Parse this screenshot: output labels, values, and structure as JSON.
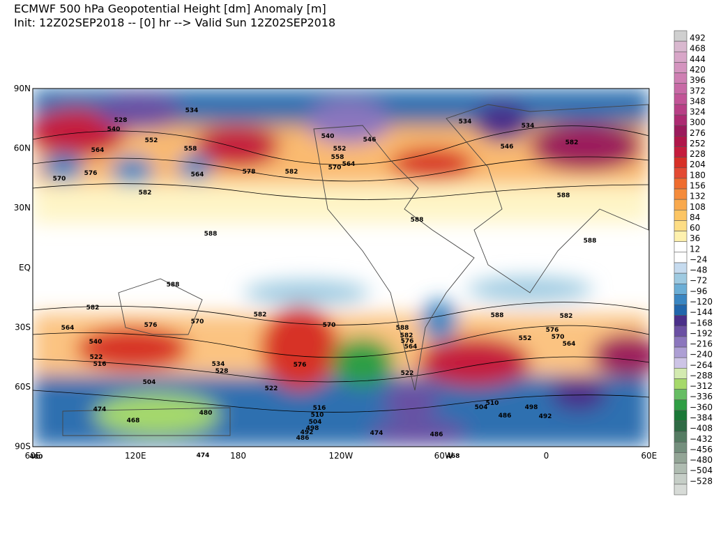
{
  "header": {
    "title": "ECMWF 500 hPa Geopotential Height [dm] Anomaly [m]",
    "subtitle": "Init: 12Z02SEP2018 -- [0] hr --> Valid Sun 12Z02SEP2018"
  },
  "map": {
    "lat_labels": [
      "90N",
      "60N",
      "30N",
      "EQ",
      "30S",
      "60S",
      "90S"
    ],
    "lon_labels": [
      "60E",
      "120E",
      "180",
      "120W",
      "60W",
      "0",
      "60E"
    ],
    "contour_labels": [
      "534",
      "528",
      "540",
      "564",
      "552",
      "558",
      "576",
      "570",
      "582",
      "564",
      "578",
      "582",
      "588",
      "588",
      "588",
      "552",
      "540",
      "546",
      "558",
      "564",
      "570",
      "534",
      "534",
      "546",
      "582",
      "588",
      "588",
      "582",
      "582",
      "588",
      "582",
      "576",
      "570",
      "570",
      "564",
      "588",
      "582",
      "576",
      "564",
      "576",
      "570",
      "564",
      "540",
      "522",
      "516",
      "534",
      "528",
      "576",
      "522",
      "522",
      "504",
      "474",
      "468",
      "480",
      "516",
      "510",
      "504",
      "498",
      "492",
      "486",
      "474",
      "486",
      "468",
      "510",
      "504",
      "498",
      "486",
      "492",
      "474",
      "480",
      "552"
    ]
  },
  "colorbar": {
    "labels": [
      "492",
      "468",
      "444",
      "420",
      "396",
      "372",
      "348",
      "324",
      "300",
      "276",
      "252",
      "228",
      "204",
      "180",
      "156",
      "132",
      "108",
      "84",
      "60",
      "36",
      "12",
      "−24",
      "−48",
      "−72",
      "−96",
      "−120",
      "−144",
      "−168",
      "−192",
      "−216",
      "−240",
      "−264",
      "−288",
      "−312",
      "−336",
      "−360",
      "−384",
      "−408",
      "−432",
      "−456",
      "−480",
      "−504",
      "−528"
    ],
    "colors": [
      "#cfcfcf",
      "#d9b8cf",
      "#d8a6c8",
      "#d494bf",
      "#cf7fb3",
      "#c86aa6",
      "#c25497",
      "#b83f86",
      "#ad2a72",
      "#9b1a5c",
      "#b0164a",
      "#c51c3d",
      "#d73027",
      "#e34a33",
      "#ef6c2e",
      "#f58b3b",
      "#f9a94d",
      "#fcc563",
      "#fddd85",
      "#fef1ae",
      "#ffffff",
      "#ffffff",
      "#c6dbef",
      "#9ecae1",
      "#6baed6",
      "#3a86c2",
      "#2166ac",
      "#4a2f8a",
      "#6a4fa3",
      "#8b76bd",
      "#ad9fd4",
      "#cdc4e6",
      "#d3eab0",
      "#a6d96a",
      "#66bd63",
      "#2f9e44",
      "#1a7837",
      "#2f6b45",
      "#557c63",
      "#748f7d",
      "#93a596",
      "#afbcb1",
      "#c6cec7",
      "#d7dbd7"
    ]
  }
}
